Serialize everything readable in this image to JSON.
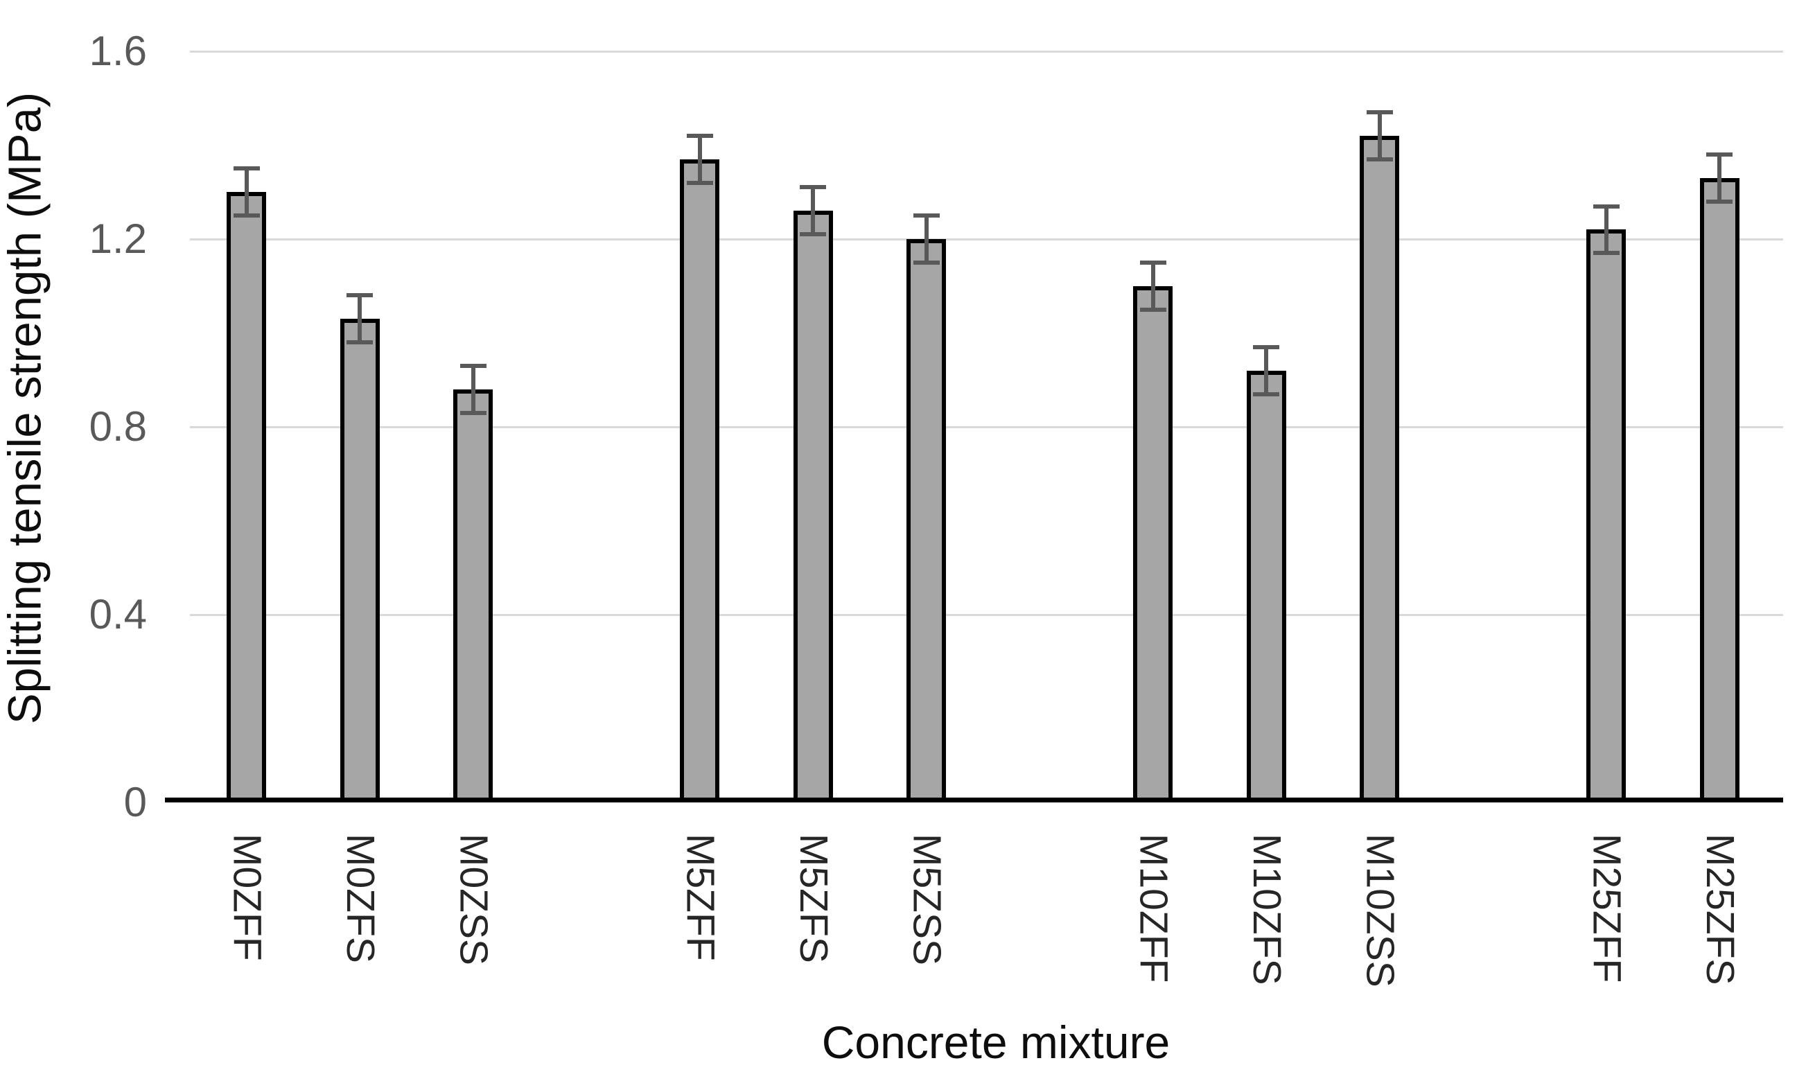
{
  "chart_data": {
    "type": "bar",
    "title": "",
    "xlabel": "Concrete mixture",
    "ylabel": "Splitting tensile strength (MPa)",
    "ylim": [
      0,
      1.6
    ],
    "yticks": [
      0,
      0.4,
      0.8,
      1.2,
      1.6
    ],
    "ytick_labels": [
      "0",
      "0.4",
      "0.8",
      "1.2",
      "1.6"
    ],
    "grid": true,
    "legend": false,
    "error_bars": true,
    "colors": {
      "bar_fill": "#a6a6a6",
      "bar_border": "#000000",
      "error_bar": "#595959",
      "gridline": "#d9d9d9",
      "axis_line": "#000000",
      "tick_label": "#595959",
      "category_label": "#262626",
      "axis_title": "#0d0d0d",
      "background": "#ffffff"
    },
    "groups": [
      {
        "name": "M0",
        "bars": [
          {
            "label": "M0ZFF",
            "value": 1.3,
            "error": 0.05
          },
          {
            "label": "M0ZFS",
            "value": 1.03,
            "error": 0.05
          },
          {
            "label": "M0ZSS",
            "value": 0.88,
            "error": 0.05
          }
        ]
      },
      {
        "name": "M5",
        "bars": [
          {
            "label": "M5ZFF",
            "value": 1.37,
            "error": 0.05
          },
          {
            "label": "M5ZFS",
            "value": 1.26,
            "error": 0.05
          },
          {
            "label": "M5ZSS",
            "value": 1.2,
            "error": 0.05
          }
        ]
      },
      {
        "name": "M10",
        "bars": [
          {
            "label": "M10ZFF",
            "value": 1.1,
            "error": 0.05
          },
          {
            "label": "M10ZFS",
            "value": 0.92,
            "error": 0.05
          },
          {
            "label": "M10ZSS",
            "value": 1.42,
            "error": 0.05
          }
        ]
      },
      {
        "name": "M25",
        "bars": [
          {
            "label": "M25ZFF",
            "value": 1.22,
            "error": 0.05
          },
          {
            "label": "M25ZFS",
            "value": 1.33,
            "error": 0.05
          }
        ]
      }
    ]
  }
}
